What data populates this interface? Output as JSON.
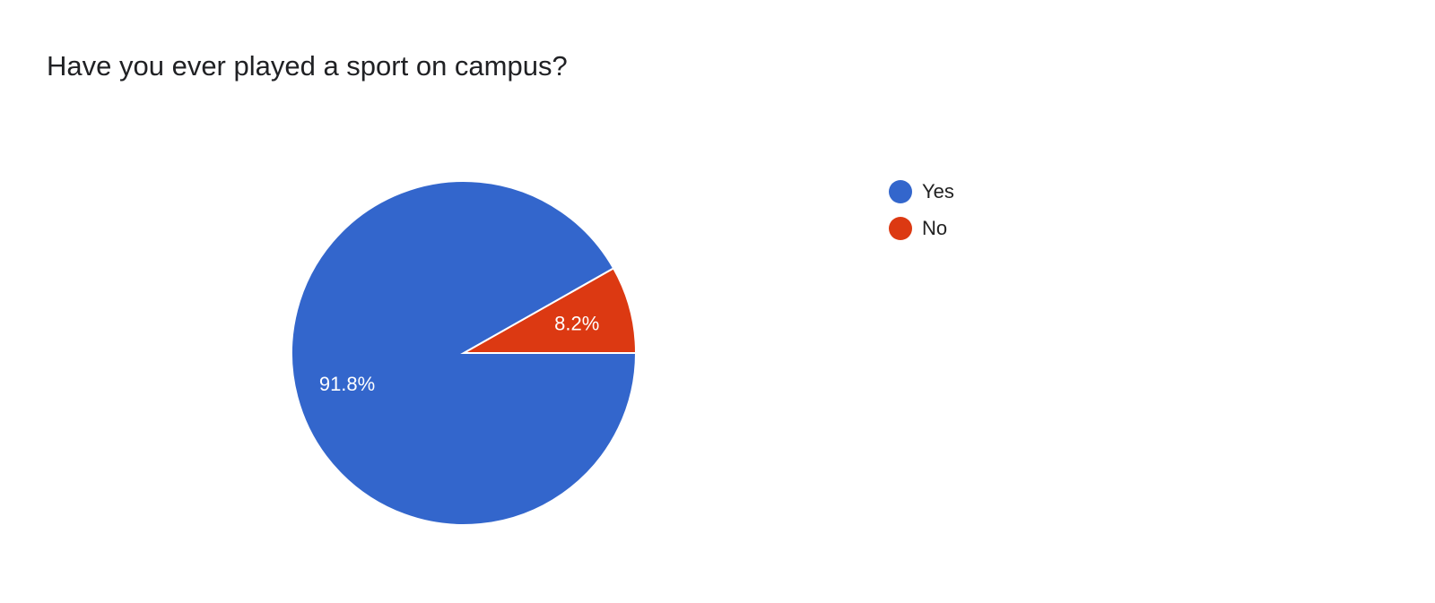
{
  "chart_data": {
    "type": "pie",
    "title": "Have you ever played a sport on campus?",
    "slices": [
      {
        "label": "Yes",
        "value": 91.8,
        "data_label": "91.8%",
        "color": "#3366cc"
      },
      {
        "label": "No",
        "value": 8.2,
        "data_label": "8.2%",
        "color": "#dc3912"
      }
    ],
    "legend": "right"
  }
}
